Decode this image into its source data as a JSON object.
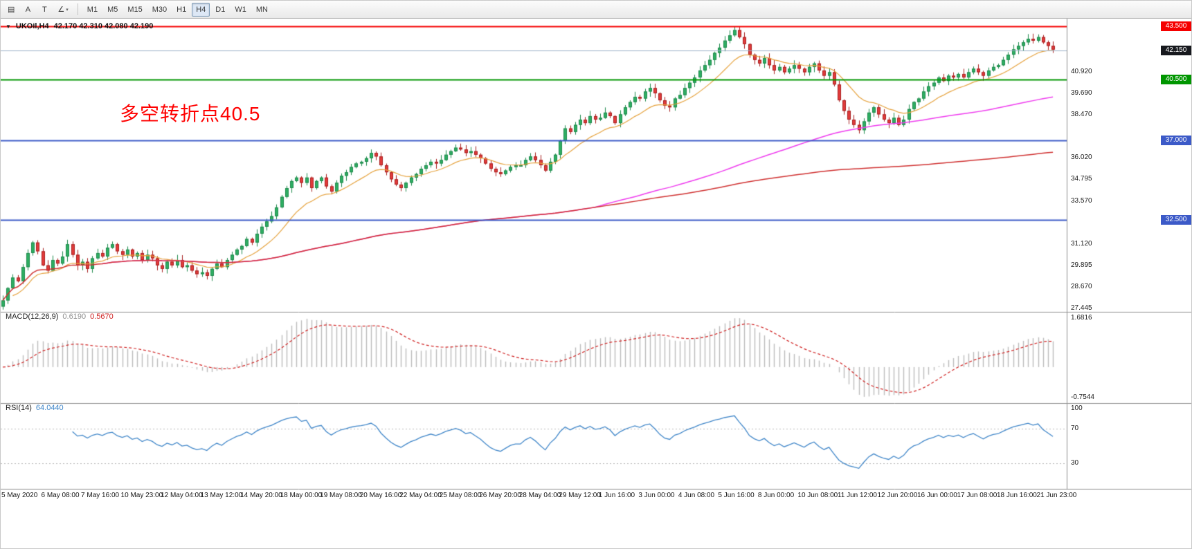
{
  "toolbar": {
    "left_icons": [
      {
        "name": "charts-window-icon",
        "glyph": "▤"
      },
      {
        "name": "cursor-tool",
        "label": "A"
      },
      {
        "name": "text-tool",
        "label": "T"
      },
      {
        "name": "angle-tool",
        "glyph": "∠",
        "caret": true
      }
    ],
    "timeframes": [
      "M1",
      "M5",
      "M15",
      "M30",
      "H1",
      "H4",
      "D1",
      "W1",
      "MN"
    ],
    "active_timeframe": "H4"
  },
  "chart": {
    "collapse_icon": "▼",
    "title": "UKOil,H4",
    "ohlc": "42.170 42.310 42.080 42.190",
    "annotation": {
      "text": "多空转折点40.5",
      "color": "#ff0000"
    },
    "price_axis": {
      "plain_labels": [
        "40.920",
        "39.690",
        "38.470",
        "36.020",
        "34.795",
        "33.570",
        "31.120",
        "29.895",
        "28.670",
        "27.445"
      ],
      "tags": [
        {
          "name": "resistance-line-tag",
          "value": "43.500",
          "color": "#f50000"
        },
        {
          "name": "bid-price-tag",
          "value": "42.150",
          "color": "#17191e"
        },
        {
          "name": "pivot-line-tag",
          "value": "40.500",
          "color": "#009600"
        },
        {
          "name": "support-line-tag-37",
          "value": "37.000",
          "color": "#3c5ac8"
        },
        {
          "name": "support-line-tag-32",
          "value": "32.500",
          "color": "#3c5ac8"
        }
      ]
    }
  },
  "macd_panel": {
    "label": "MACD(12,26,9)",
    "value_main": "0.6190",
    "value_signal": "0.5670",
    "axis_labels": [
      "1.6816",
      "-0.7544"
    ]
  },
  "rsi_panel": {
    "label": "RSI(14)",
    "value": "64.0440",
    "axis_labels": [
      "100",
      "70",
      "30"
    ],
    "levels": [
      70,
      30
    ]
  },
  "time_axis": {
    "labels": [
      {
        "text": "5 May 2020",
        "index": 0
      },
      {
        "text": "6 May 08:00",
        "index": 8
      },
      {
        "text": "7 May 16:00",
        "index": 16
      },
      {
        "text": "10 May 23:00",
        "index": 24
      },
      {
        "text": "12 May 04:00",
        "index": 32
      },
      {
        "text": "13 May 12:00",
        "index": 40
      },
      {
        "text": "14 May 20:00",
        "index": 48
      },
      {
        "text": "18 May 00:00",
        "index": 56
      },
      {
        "text": "19 May 08:00",
        "index": 64
      },
      {
        "text": "20 May 16:00",
        "index": 72
      },
      {
        "text": "22 May 04:00",
        "index": 80
      },
      {
        "text": "25 May 08:00",
        "index": 88
      },
      {
        "text": "26 May 20:00",
        "index": 96
      },
      {
        "text": "28 May 04:00",
        "index": 104
      },
      {
        "text": "29 May 12:00",
        "index": 112
      },
      {
        "text": "1 Jun 16:00",
        "index": 120
      },
      {
        "text": "3 Jun 00:00",
        "index": 128
      },
      {
        "text": "4 Jun 08:00",
        "index": 136
      },
      {
        "text": "5 Jun 16:00",
        "index": 144
      },
      {
        "text": "8 Jun 00:00",
        "index": 152
      },
      {
        "text": "10 Jun 08:00",
        "index": 160
      },
      {
        "text": "11 Jun 12:00",
        "index": 168
      },
      {
        "text": "12 Jun 20:00",
        "index": 176
      },
      {
        "text": "16 Jun 00:00",
        "index": 184
      },
      {
        "text": "17 Jun 08:00",
        "index": 192
      },
      {
        "text": "18 Jun 16:00",
        "index": 200
      },
      {
        "text": "21 Jun 23:00",
        "index": 208
      }
    ]
  },
  "chart_data": {
    "type": "candlestick",
    "title": "UKOil,H4",
    "symbol": "UKOil",
    "timeframe": "H4",
    "ylim": [
      27.25,
      43.95
    ],
    "current_price": 42.15,
    "current_bar_ohlc": [
      42.17,
      42.31,
      42.08,
      42.19
    ],
    "hlines": [
      {
        "price": 43.5,
        "color": "#f50000"
      },
      {
        "price": 40.5,
        "color": "#009600"
      },
      {
        "price": 37.0,
        "color": "#3c5ac8"
      },
      {
        "price": 32.5,
        "color": "#3c5ac8"
      }
    ],
    "moving_averages": [
      {
        "name": "fast",
        "period": 13,
        "color": "#e6a23c"
      },
      {
        "name": "medium",
        "period": 120,
        "color": "#ef3cef"
      },
      {
        "name": "slow",
        "period": "cumulative",
        "color": "#d03030"
      }
    ],
    "macd": {
      "fast": 12,
      "slow": 26,
      "signal": 9,
      "histogram_color": "#bcbcbc",
      "signal_color": "#d02020"
    },
    "rsi": {
      "period": 14,
      "color": "#3f86c9",
      "levels": [
        70,
        30
      ],
      "last_value": 64.044
    },
    "closes": [
      27.9,
      28.6,
      29.2,
      29.0,
      29.8,
      30.6,
      31.2,
      30.7,
      29.9,
      29.6,
      30.2,
      30.0,
      30.4,
      31.1,
      30.5,
      29.9,
      30.1,
      29.7,
      30.3,
      30.6,
      30.4,
      30.9,
      31.1,
      30.7,
      30.5,
      30.8,
      30.4,
      30.6,
      30.2,
      30.5,
      30.3,
      29.9,
      29.7,
      30.1,
      29.9,
      30.2,
      29.8,
      29.9,
      29.6,
      29.4,
      29.5,
      29.3,
      29.7,
      30.0,
      29.8,
      30.2,
      30.5,
      30.8,
      31.0,
      31.4,
      31.2,
      31.7,
      32.1,
      32.4,
      32.7,
      33.2,
      33.8,
      34.3,
      34.7,
      34.9,
      34.6,
      34.9,
      34.3,
      34.7,
      34.9,
      34.4,
      34.1,
      34.6,
      35.0,
      35.2,
      35.5,
      35.7,
      35.8,
      36.0,
      36.3,
      36.1,
      35.6,
      35.2,
      34.8,
      34.5,
      34.3,
      34.6,
      34.9,
      35.1,
      35.4,
      35.6,
      35.8,
      35.7,
      35.9,
      36.2,
      36.4,
      36.6,
      36.5,
      36.3,
      36.4,
      36.2,
      36.0,
      35.7,
      35.4,
      35.2,
      35.1,
      35.3,
      35.5,
      35.6,
      35.6,
      35.9,
      36.1,
      35.9,
      35.6,
      35.3,
      35.8,
      36.2,
      37.0,
      37.7,
      37.5,
      37.9,
      38.2,
      38.0,
      38.4,
      38.2,
      38.3,
      38.6,
      38.4,
      38.0,
      38.5,
      38.9,
      39.2,
      39.5,
      39.4,
      39.8,
      40.0,
      39.7,
      39.3,
      39.0,
      38.9,
      39.4,
      39.6,
      40.0,
      40.3,
      40.6,
      41.0,
      41.3,
      41.6,
      42.0,
      42.3,
      42.7,
      43.0,
      43.3,
      42.9,
      42.5,
      41.9,
      41.6,
      41.4,
      41.7,
      41.3,
      41.0,
      41.2,
      40.9,
      41.1,
      41.3,
      41.1,
      40.9,
      41.2,
      41.4,
      41.0,
      40.7,
      40.9,
      40.2,
      39.3,
      38.7,
      38.2,
      37.9,
      37.6,
      38.1,
      38.6,
      38.9,
      38.5,
      38.2,
      38.0,
      38.3,
      37.9,
      38.2,
      38.8,
      39.2,
      39.4,
      39.8,
      40.1,
      40.3,
      40.6,
      40.4,
      40.7,
      40.6,
      40.8,
      40.6,
      40.9,
      41.1,
      40.9,
      40.7,
      41.0,
      41.2,
      41.3,
      41.6,
      41.9,
      42.2,
      42.4,
      42.6,
      42.8,
      42.7,
      42.9,
      42.6,
      42.4,
      42.19
    ]
  }
}
